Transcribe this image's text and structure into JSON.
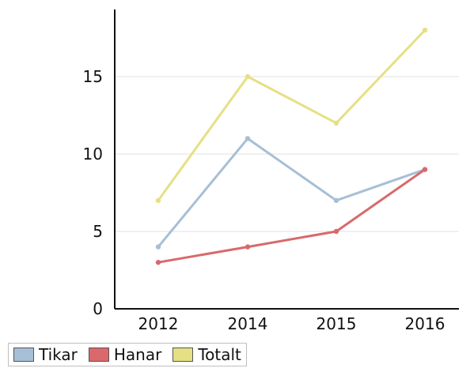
{
  "chart_data": {
    "type": "line",
    "categories": [
      "2012",
      "2014",
      "2015",
      "2016"
    ],
    "series": [
      {
        "name": "Tikar",
        "values": [
          4,
          11,
          7,
          9
        ],
        "color": "#a7bfd6"
      },
      {
        "name": "Hanar",
        "values": [
          3,
          4,
          5,
          9
        ],
        "color": "#d9696b"
      },
      {
        "name": "Totalt",
        "values": [
          7,
          15,
          12,
          18
        ],
        "color": "#e6e084"
      }
    ],
    "y_ticks": [
      0,
      5,
      10,
      15
    ],
    "ylim": [
      0,
      19
    ],
    "grid": true,
    "legend": "bottom-left"
  }
}
